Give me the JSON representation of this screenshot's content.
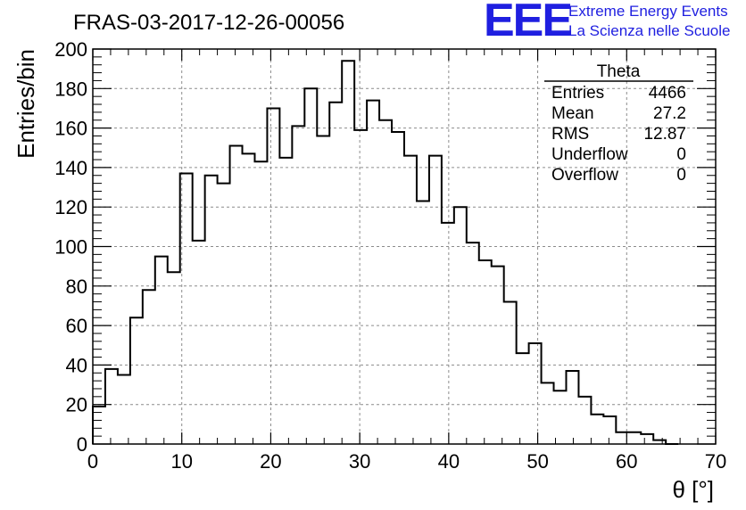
{
  "chart_data": {
    "type": "bar",
    "title": "FRAS-03-2017-12-26-00056",
    "xlabel": "θ [°]",
    "ylabel": "Entries/bin",
    "xlim": [
      0,
      70
    ],
    "ylim": [
      0,
      200
    ],
    "xticks": [
      "0",
      "10",
      "20",
      "30",
      "40",
      "50",
      "60",
      "70"
    ],
    "yticks": [
      "0",
      "20",
      "40",
      "60",
      "80",
      "100",
      "120",
      "140",
      "160",
      "180",
      "200"
    ],
    "grid": true,
    "bin_width": 1.4,
    "bins": [
      {
        "x0": 0.0,
        "value": 19
      },
      {
        "x0": 1.4,
        "value": 38
      },
      {
        "x0": 2.8,
        "value": 35
      },
      {
        "x0": 4.2,
        "value": 64
      },
      {
        "x0": 5.6,
        "value": 78
      },
      {
        "x0": 7.0,
        "value": 95
      },
      {
        "x0": 8.4,
        "value": 87
      },
      {
        "x0": 9.8,
        "value": 137
      },
      {
        "x0": 11.2,
        "value": 103
      },
      {
        "x0": 12.6,
        "value": 136
      },
      {
        "x0": 14.0,
        "value": 132
      },
      {
        "x0": 15.4,
        "value": 151
      },
      {
        "x0": 16.8,
        "value": 147
      },
      {
        "x0": 18.2,
        "value": 143
      },
      {
        "x0": 19.6,
        "value": 170
      },
      {
        "x0": 21.0,
        "value": 145
      },
      {
        "x0": 22.4,
        "value": 161
      },
      {
        "x0": 23.8,
        "value": 180
      },
      {
        "x0": 25.2,
        "value": 156
      },
      {
        "x0": 26.6,
        "value": 173
      },
      {
        "x0": 28.0,
        "value": 194
      },
      {
        "x0": 29.4,
        "value": 159
      },
      {
        "x0": 30.8,
        "value": 174
      },
      {
        "x0": 32.2,
        "value": 164
      },
      {
        "x0": 33.6,
        "value": 158
      },
      {
        "x0": 35.0,
        "value": 146
      },
      {
        "x0": 36.4,
        "value": 123
      },
      {
        "x0": 37.8,
        "value": 146
      },
      {
        "x0": 39.2,
        "value": 112
      },
      {
        "x0": 40.6,
        "value": 120
      },
      {
        "x0": 42.0,
        "value": 102
      },
      {
        "x0": 43.4,
        "value": 93
      },
      {
        "x0": 44.8,
        "value": 90
      },
      {
        "x0": 46.2,
        "value": 72
      },
      {
        "x0": 47.6,
        "value": 46
      },
      {
        "x0": 49.0,
        "value": 51
      },
      {
        "x0": 50.4,
        "value": 31
      },
      {
        "x0": 51.8,
        "value": 27
      },
      {
        "x0": 53.2,
        "value": 37
      },
      {
        "x0": 54.6,
        "value": 24
      },
      {
        "x0": 56.0,
        "value": 15
      },
      {
        "x0": 57.4,
        "value": 14
      },
      {
        "x0": 58.8,
        "value": 6
      },
      {
        "x0": 60.2,
        "value": 6
      },
      {
        "x0": 61.6,
        "value": 5
      },
      {
        "x0": 63.0,
        "value": 2
      },
      {
        "x0": 64.4,
        "value": 0
      }
    ]
  },
  "stats_box": {
    "name": "Theta",
    "rows": [
      {
        "label": "Entries",
        "value": "4466"
      },
      {
        "label": "Mean",
        "value": "27.2"
      },
      {
        "label": "RMS",
        "value": "12.87"
      },
      {
        "label": "Underflow",
        "value": "0"
      },
      {
        "label": "Overflow",
        "value": "0"
      }
    ]
  },
  "logo": {
    "mark": "EEE",
    "line1": "Extreme Energy Events",
    "line2": "La Scienza nelle Scuole",
    "color": "#1f1fe0"
  }
}
